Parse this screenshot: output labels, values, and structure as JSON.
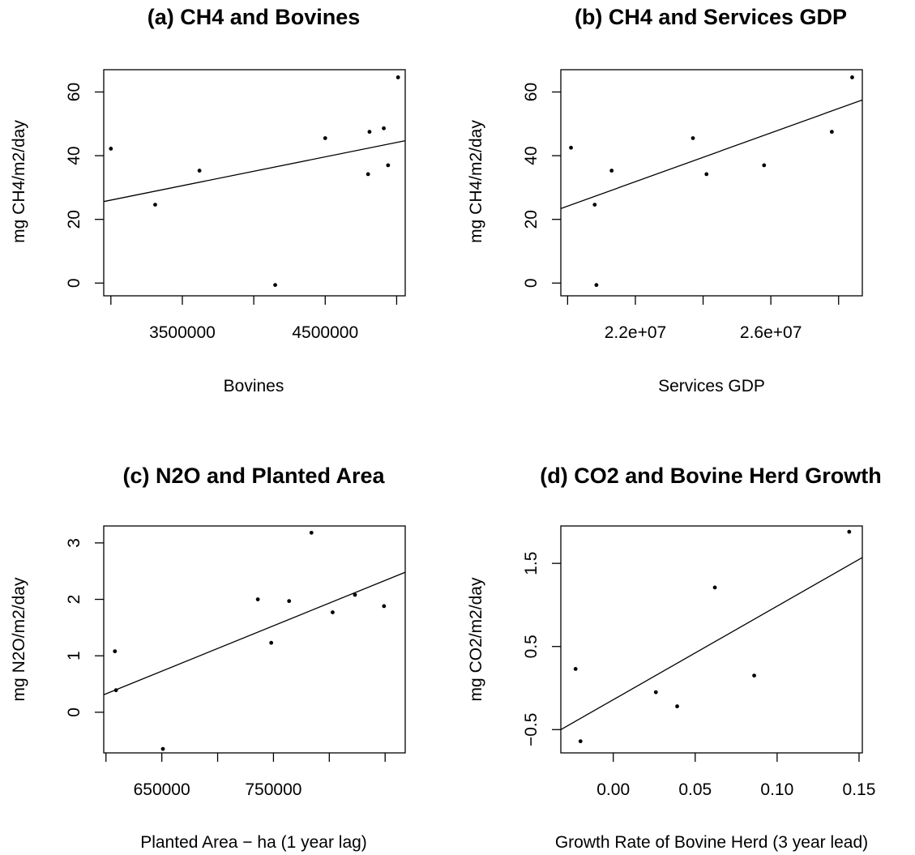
{
  "chart_data": [
    {
      "type": "scatter",
      "title": "(a) CH4 and Bovines",
      "xlabel": "Bovines",
      "ylabel": "mg CH4/m2/day",
      "xlim": [
        2950000,
        5060000
      ],
      "ylim": [
        -4,
        67
      ],
      "xticks": [
        3000000,
        3500000,
        4000000,
        4500000,
        5000000
      ],
      "xtick_labels": [
        "",
        "3500000",
        "",
        "4500000",
        ""
      ],
      "yticks": [
        0,
        20,
        40,
        60
      ],
      "ytick_labels": [
        "0",
        "20",
        "40",
        "60"
      ],
      "x": [
        3000000,
        3310000,
        3620000,
        4150000,
        4500000,
        4800000,
        4810000,
        4910000,
        4940000,
        5010000
      ],
      "y": [
        42.2,
        24.6,
        35.3,
        -0.6,
        45.5,
        34.2,
        47.5,
        48.6,
        37.0,
        64.6
      ],
      "fit_line": [
        [
          2950000,
          25.6
        ],
        [
          5060000,
          44.7
        ]
      ]
    },
    {
      "type": "scatter",
      "title": "(b) CH4 and Services GDP",
      "xlabel": "Services GDP",
      "ylabel": "mg CH4/m2/day",
      "xlim": [
        19800000,
        28700000
      ],
      "ylim": [
        -4,
        67
      ],
      "xticks": [
        20000000,
        22000000,
        24000000,
        26000000,
        28000000
      ],
      "xtick_labels": [
        "",
        "2.2e+07",
        "",
        "2.6e+07",
        ""
      ],
      "yticks": [
        0,
        20,
        40,
        60
      ],
      "ytick_labels": [
        "0",
        "20",
        "40",
        "60"
      ],
      "x": [
        20100000,
        20800000,
        20850000,
        21300000,
        23700000,
        24100000,
        25800000,
        27800000,
        28400000
      ],
      "y": [
        42.5,
        24.6,
        -0.6,
        35.3,
        45.5,
        34.2,
        37.0,
        47.5,
        64.6
      ],
      "fit_line": [
        [
          19800000,
          23.4
        ],
        [
          28700000,
          57.5
        ]
      ]
    },
    {
      "type": "scatter",
      "title": "(c) N2O and Planted Area",
      "xlabel": "Planted Area − ha (1 year lag)",
      "ylabel": "mg N2O/m2/day",
      "xlim": [
        598000,
        868000
      ],
      "ylim": [
        -0.72,
        3.3
      ],
      "xticks": [
        600000,
        650000,
        700000,
        750000,
        800000,
        850000
      ],
      "xtick_labels": [
        "",
        "650000",
        "",
        "750000",
        "",
        ""
      ],
      "yticks": [
        0,
        1,
        2,
        3
      ],
      "ytick_labels": [
        "0",
        "1",
        "2",
        "3"
      ],
      "x": [
        608000,
        609000,
        651000,
        736000,
        748000,
        764000,
        784000,
        803000,
        823000,
        849000
      ],
      "y": [
        1.08,
        0.39,
        -0.65,
        2.0,
        1.23,
        1.97,
        3.18,
        1.77,
        2.08,
        1.88
      ],
      "fit_line": [
        [
          598000,
          0.31
        ],
        [
          868000,
          2.48
        ]
      ]
    },
    {
      "type": "scatter",
      "title": "(d) CO2 and Bovine Herd Growth",
      "xlabel": "Growth Rate of Bovine Herd (3 year lead)",
      "ylabel": "mg CO2/m2/day",
      "xlim": [
        -0.032,
        0.152
      ],
      "ylim": [
        -0.78,
        1.95
      ],
      "xticks": [
        0.0,
        0.05,
        0.1,
        0.15
      ],
      "xtick_labels": [
        "0.00",
        "0.05",
        "0.10",
        "0.15"
      ],
      "yticks": [
        -0.5,
        0.5,
        1.5
      ],
      "ytick_labels": [
        "−0.5",
        "0.5",
        "1.5"
      ],
      "x": [
        -0.023,
        -0.02,
        0.026,
        0.039,
        0.062,
        0.086,
        0.144
      ],
      "y": [
        0.23,
        -0.64,
        -0.05,
        -0.22,
        1.21,
        0.15,
        1.88
      ],
      "fit_line": [
        [
          -0.032,
          -0.5
        ],
        [
          0.152,
          1.57
        ]
      ]
    }
  ]
}
